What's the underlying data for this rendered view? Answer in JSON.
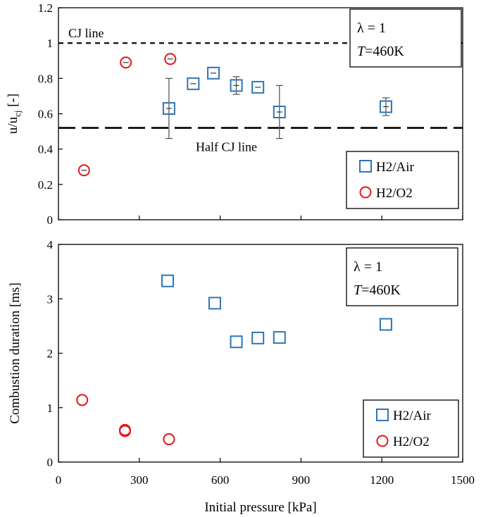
{
  "colors": {
    "h2air": "#2E75B6",
    "h2o2": "#E8141B",
    "errbar": "#595959",
    "axis": "#000000"
  },
  "chart_data": [
    {
      "type": "scatter",
      "ylabel_main": "u/u",
      "ylabel_sub": "cj",
      "ylabel_unit": " [-]",
      "xlim": [
        0,
        1500
      ],
      "ylim": [
        0,
        1.2
      ],
      "yticks": [
        "0",
        "0.2",
        "0.4",
        "0.6",
        "0.8",
        "1",
        "1.2"
      ],
      "ytick_values": [
        0,
        0.2,
        0.4,
        0.6,
        0.8,
        1.0,
        1.2
      ],
      "xtick_values": [
        0,
        300,
        600,
        900,
        1200,
        1500
      ],
      "reference_lines": [
        {
          "label": "CJ line",
          "y": 1.0,
          "style": "short-dash"
        },
        {
          "label": "Half CJ line",
          "y": 0.52,
          "style": "long-dash"
        }
      ],
      "info": {
        "lambda": "λ = 1",
        "temp_var": "T",
        "temp_value": "=460K"
      },
      "legend": {
        "position": "bottom-right"
      },
      "series": [
        {
          "name": "H2/Air",
          "marker": "square",
          "x": [
            410,
            500,
            575,
            660,
            740,
            820,
            1215
          ],
          "y": [
            0.63,
            0.77,
            0.83,
            0.76,
            0.75,
            0.61,
            0.64
          ],
          "err": [
            0.17,
            0.0,
            0.0,
            0.05,
            0.0,
            0.15,
            0.05
          ]
        },
        {
          "name": "H2/O2",
          "marker": "circle",
          "x": [
            95,
            250,
            415
          ],
          "y": [
            0.28,
            0.89,
            0.91
          ],
          "err": [
            0.0,
            0.0,
            0.0
          ]
        }
      ]
    },
    {
      "type": "scatter",
      "xlabel": "Initial pressure [kPa]",
      "ylabel": "Combustion  duration  [ms]",
      "xlim": [
        0,
        1500
      ],
      "ylim": [
        0,
        4
      ],
      "xticks": [
        "0",
        "300",
        "600",
        "900",
        "1200",
        "1500"
      ],
      "xtick_values": [
        0,
        300,
        600,
        900,
        1200,
        1500
      ],
      "yticks": [
        "0",
        "1",
        "2",
        "3",
        "4"
      ],
      "ytick_values": [
        0,
        1,
        2,
        3,
        4
      ],
      "info": {
        "lambda": "λ = 1",
        "temp_var": "T",
        "temp_value": "=460K"
      },
      "legend": {
        "position": "bottom-right"
      },
      "series": [
        {
          "name": "H2/Air",
          "marker": "square",
          "x": [
            405,
            580,
            660,
            740,
            820,
            1215
          ],
          "y": [
            3.33,
            2.92,
            2.21,
            2.28,
            2.29,
            2.53
          ]
        },
        {
          "name": "H2/O2",
          "marker": "circle",
          "x": [
            88,
            247,
            247,
            410
          ],
          "y": [
            1.14,
            0.59,
            0.57,
            0.42
          ]
        }
      ]
    }
  ]
}
